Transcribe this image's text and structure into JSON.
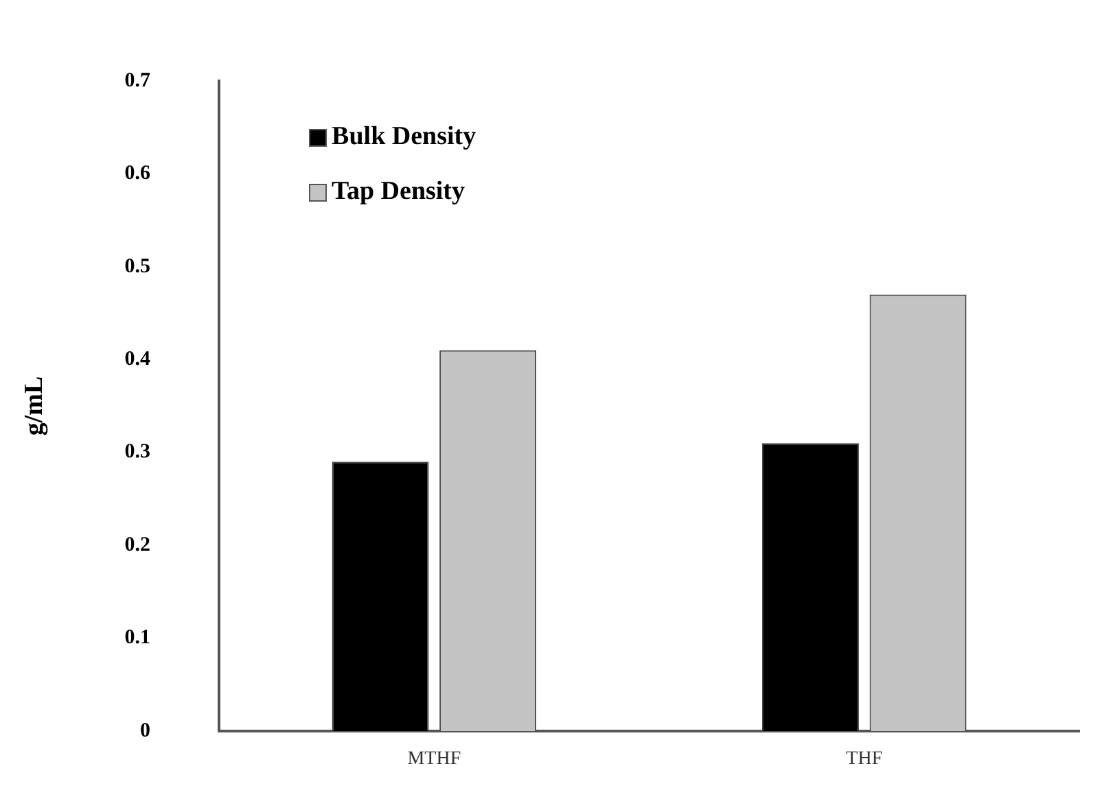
{
  "chart_data": {
    "type": "bar",
    "ylabel": "g/mL",
    "categories": [
      "MTHF",
      "THF"
    ],
    "series": [
      {
        "name": "Bulk Density",
        "color": "#000000",
        "values": [
          0.29,
          0.31
        ]
      },
      {
        "name": "Tap Density",
        "color": "#c4c4c4",
        "values": [
          0.41,
          0.47
        ]
      }
    ],
    "ylim": [
      0,
      0.7
    ],
    "yticks": [
      0,
      0.1,
      0.2,
      0.3,
      0.4,
      0.5,
      0.6,
      0.7
    ],
    "grid": false,
    "legend": "top left"
  }
}
